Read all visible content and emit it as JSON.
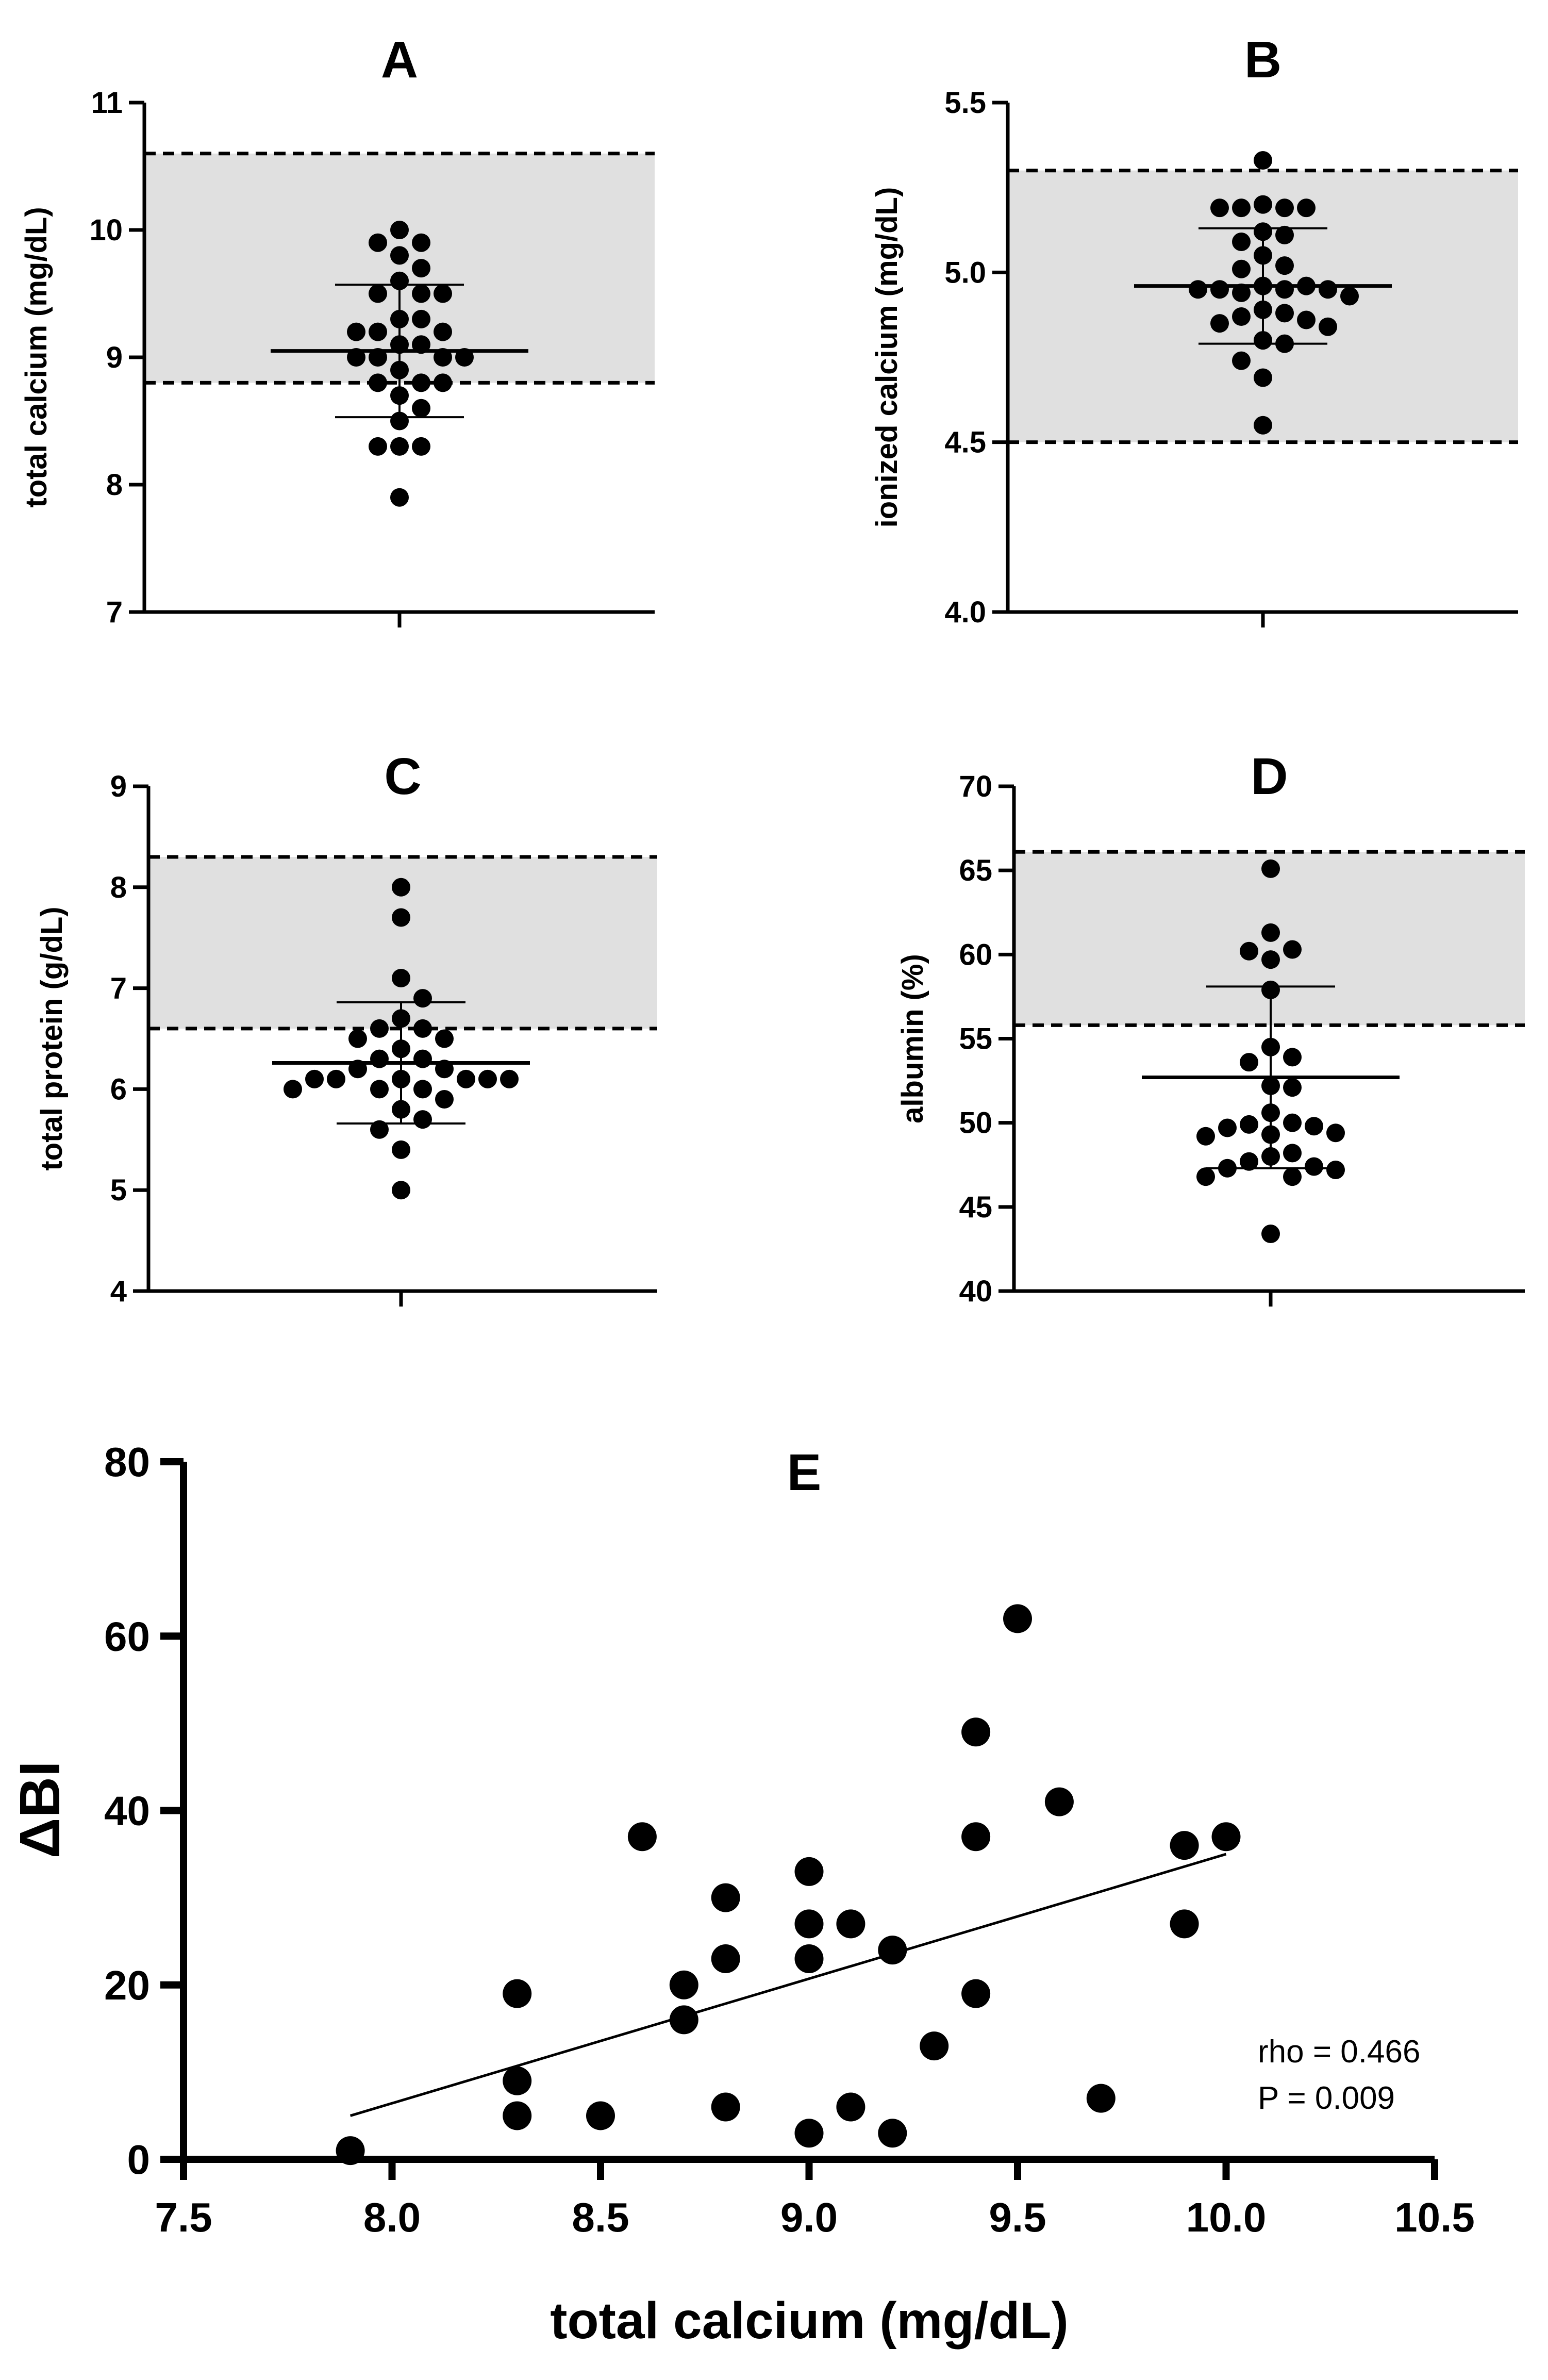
{
  "chart_data": [
    {
      "type": "scatter",
      "title": "A",
      "ylabel": "total calcium (mg/dL)",
      "ylim": [
        7,
        11
      ],
      "yticks": [
        7,
        8,
        9,
        10,
        11
      ],
      "reference_range": [
        8.8,
        10.6
      ],
      "mean": 9.05,
      "sd_bar": [
        8.53,
        9.57
      ],
      "values": [
        10.0,
        9.9,
        9.9,
        9.8,
        9.7,
        9.6,
        9.5,
        9.5,
        9.5,
        9.3,
        9.3,
        9.2,
        9.2,
        9.2,
        9.1,
        9.1,
        9.0,
        9.0,
        9.0,
        9.0,
        8.9,
        8.8,
        8.8,
        8.8,
        8.7,
        8.6,
        8.5,
        8.3,
        8.3,
        8.3,
        7.9
      ]
    },
    {
      "type": "scatter",
      "title": "B",
      "ylabel": "ionized calcium (mg/dL)",
      "ylim": [
        4.0,
        5.5
      ],
      "yticks": [
        "4.0",
        "4.5",
        "5.0",
        "5.5"
      ],
      "reference_range": [
        4.5,
        5.3
      ],
      "mean": 4.96,
      "sd_bar": [
        4.79,
        5.13
      ],
      "values": [
        5.33,
        5.2,
        5.19,
        5.19,
        5.19,
        5.19,
        5.12,
        5.11,
        5.09,
        5.05,
        5.02,
        5.01,
        4.96,
        4.96,
        4.95,
        4.95,
        4.95,
        4.95,
        4.94,
        4.93,
        4.89,
        4.88,
        4.87,
        4.86,
        4.85,
        4.84,
        4.8,
        4.79,
        4.74,
        4.69,
        4.55
      ]
    },
    {
      "type": "scatter",
      "title": "C",
      "ylabel": "total protein (g/dL)",
      "ylim": [
        4,
        9
      ],
      "yticks": [
        4,
        5,
        6,
        7,
        8,
        9
      ],
      "reference_range": [
        6.6,
        8.3
      ],
      "mean": 6.26,
      "sd_bar": [
        5.66,
        6.86
      ],
      "values": [
        8.0,
        7.7,
        7.1,
        6.9,
        6.7,
        6.6,
        6.6,
        6.5,
        6.5,
        6.4,
        6.3,
        6.3,
        6.2,
        6.2,
        6.1,
        6.1,
        6.1,
        6.1,
        6.1,
        6.1,
        6.0,
        6.0,
        6.0,
        5.9,
        5.8,
        5.7,
        5.6,
        5.4,
        5.0
      ]
    },
    {
      "type": "scatter",
      "title": "D",
      "ylabel": "albumin (%)",
      "ylim": [
        40,
        70
      ],
      "yticks": [
        40,
        45,
        50,
        55,
        60,
        65,
        70
      ],
      "reference_range": [
        55.8,
        66.1
      ],
      "mean": 52.7,
      "sd_bar": [
        47.3,
        58.1
      ],
      "values": [
        65.1,
        61.3,
        60.3,
        60.2,
        59.7,
        57.9,
        54.5,
        53.9,
        53.6,
        52.2,
        52.1,
        50.6,
        50.0,
        49.9,
        49.8,
        49.7,
        49.4,
        49.3,
        49.2,
        48.2,
        48.0,
        47.7,
        47.4,
        47.3,
        47.2,
        46.8,
        46.8,
        43.4
      ]
    },
    {
      "type": "scatter",
      "title": "E",
      "xlabel": "total calcium (mg/dL)",
      "ylabel": "ΔBI",
      "xlim": [
        7.5,
        10.5
      ],
      "ylim": [
        0,
        80
      ],
      "xticks": [
        "7.5",
        "8.0",
        "8.5",
        "9.0",
        "9.5",
        "10.0",
        "10.5"
      ],
      "yticks": [
        "0",
        "20",
        "40",
        "60",
        "80"
      ],
      "points": [
        {
          "x": 7.9,
          "y": 1
        },
        {
          "x": 8.3,
          "y": 19
        },
        {
          "x": 8.3,
          "y": 9
        },
        {
          "x": 8.3,
          "y": 5
        },
        {
          "x": 8.5,
          "y": 5
        },
        {
          "x": 8.6,
          "y": 37
        },
        {
          "x": 8.7,
          "y": 20
        },
        {
          "x": 8.7,
          "y": 16
        },
        {
          "x": 8.8,
          "y": 30
        },
        {
          "x": 8.8,
          "y": 23
        },
        {
          "x": 8.8,
          "y": 6
        },
        {
          "x": 9.0,
          "y": 33
        },
        {
          "x": 9.0,
          "y": 27
        },
        {
          "x": 9.0,
          "y": 23
        },
        {
          "x": 9.0,
          "y": 3
        },
        {
          "x": 9.1,
          "y": 27
        },
        {
          "x": 9.1,
          "y": 6
        },
        {
          "x": 9.2,
          "y": 24
        },
        {
          "x": 9.2,
          "y": 3
        },
        {
          "x": 9.3,
          "y": 13
        },
        {
          "x": 9.4,
          "y": 49
        },
        {
          "x": 9.4,
          "y": 37
        },
        {
          "x": 9.4,
          "y": 19
        },
        {
          "x": 9.5,
          "y": 62
        },
        {
          "x": 9.6,
          "y": 41
        },
        {
          "x": 9.7,
          "y": 7
        },
        {
          "x": 9.9,
          "y": 36
        },
        {
          "x": 9.9,
          "y": 27
        },
        {
          "x": 10.0,
          "y": 37
        }
      ],
      "trendline": {
        "x": [
          7.9,
          10.0
        ],
        "y": [
          5,
          35
        ]
      },
      "annotations": [
        "rho = 0.466",
        "P = 0.009"
      ]
    }
  ]
}
